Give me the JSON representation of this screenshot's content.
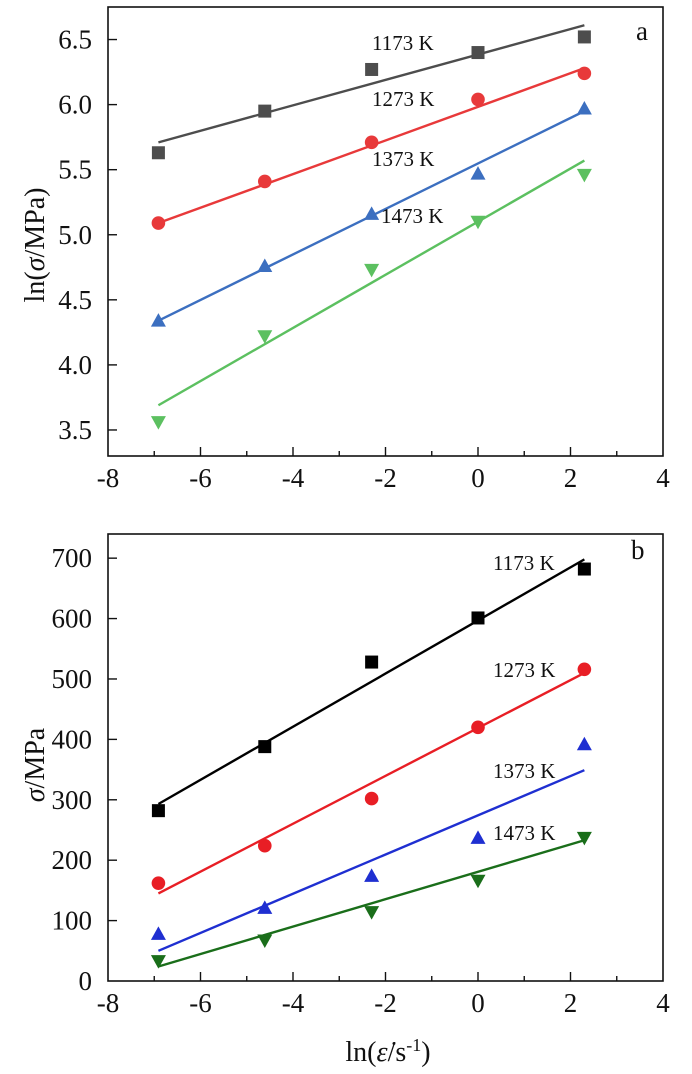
{
  "chart_data": [
    {
      "type": "scatter",
      "panel_label": "a",
      "xlim": [
        -8,
        4
      ],
      "ylim": [
        3.3,
        6.75
      ],
      "x_ticks": [
        -8,
        -6,
        -4,
        -2,
        0,
        2,
        4
      ],
      "y_ticks": [
        3.5,
        4.0,
        4.5,
        5.0,
        5.5,
        6.0,
        6.5
      ],
      "x_tick_labels": [
        "-8",
        "-6",
        "-4",
        "-2",
        "0",
        "2",
        "4"
      ],
      "y_tick_labels": [
        "3.5",
        "4.0",
        "4.5",
        "5.0",
        "5.5",
        "6.0",
        "6.5"
      ],
      "xlabel": "",
      "ylabel_parts": [
        "ln(",
        "σ",
        "/MPa)"
      ],
      "x": [
        -6.91,
        -4.61,
        -2.3,
        0,
        2.3
      ],
      "series": [
        {
          "name": "1173 K",
          "marker": "square",
          "color": "#4d4d4d",
          "values": [
            5.63,
            5.95,
            6.27,
            6.4,
            6.52
          ],
          "fit": [
            5.71,
            6.61
          ]
        },
        {
          "name": "1273 K",
          "marker": "circle",
          "color": "#e8393a",
          "values": [
            5.09,
            5.41,
            5.71,
            6.04,
            6.24
          ],
          "fit": [
            5.09,
            6.28
          ]
        },
        {
          "name": "1373 K",
          "marker": "triangle-up",
          "color": "#3c6fc0",
          "values": [
            4.34,
            4.76,
            5.16,
            5.47,
            5.97
          ],
          "fit": [
            4.34,
            5.95
          ]
        },
        {
          "name": "1473 K",
          "marker": "triangle-down",
          "color": "#5cc060",
          "values": [
            3.56,
            4.22,
            4.73,
            5.1,
            5.46
          ],
          "fit": [
            3.69,
            5.57
          ]
        }
      ]
    },
    {
      "type": "scatter",
      "panel_label": "b",
      "xlim": [
        -8,
        4
      ],
      "ylim": [
        0,
        740
      ],
      "x_ticks": [
        -8,
        -6,
        -4,
        -2,
        0,
        2,
        4
      ],
      "y_ticks": [
        0,
        100,
        200,
        300,
        400,
        500,
        600,
        700
      ],
      "x_tick_labels": [
        "-8",
        "-6",
        "-4",
        "-2",
        "0",
        "2",
        "4"
      ],
      "y_tick_labels": [
        "0",
        "100",
        "200",
        "300",
        "400",
        "500",
        "600",
        "700"
      ],
      "xlabel_parts": [
        "ln(",
        "ε̇",
        "/s",
        "-1",
        ")"
      ],
      "ylabel_parts": [
        "σ",
        "/MPa"
      ],
      "x": [
        -6.91,
        -4.61,
        -2.3,
        0,
        2.3
      ],
      "series": [
        {
          "name": "1173 K",
          "marker": "square",
          "color": "#000000",
          "values": [
            282,
            388,
            528,
            601,
            682
          ],
          "fit": [
            293,
            698
          ]
        },
        {
          "name": "1273 K",
          "marker": "circle",
          "color": "#e81e25",
          "values": [
            162,
            224,
            302,
            420,
            516
          ],
          "fit": [
            145,
            510
          ]
        },
        {
          "name": "1373 K",
          "marker": "triangle-up",
          "color": "#1f2fd1",
          "values": [
            78,
            121,
            174,
            237,
            392
          ],
          "fit": [
            50,
            349
          ]
        },
        {
          "name": "1473 K",
          "marker": "triangle-down",
          "color": "#1a6e1a",
          "values": [
            33,
            67,
            114,
            166,
            237
          ],
          "fit": [
            24,
            233
          ]
        }
      ]
    }
  ]
}
